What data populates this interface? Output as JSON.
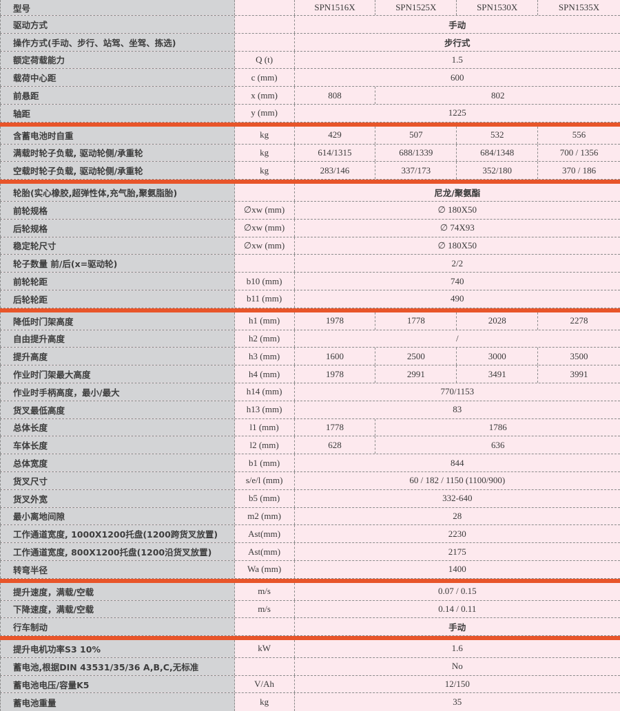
{
  "colors": {
    "label_bg": "#d3d4d6",
    "cell_bg": "#fde9ee",
    "separator": "#e8552a"
  },
  "sections": [
    [
      {
        "label": "型号",
        "unit": "",
        "values": [
          "SPN1516X",
          "SPN1525X",
          "SPN1530X",
          "SPN1535X"
        ]
      },
      {
        "label": "驱动方式",
        "unit": "",
        "values": [
          "手动"
        ]
      },
      {
        "label": "操作方式(手动、步行、站驾、坐驾、拣选)",
        "unit": "",
        "values": [
          "步行式"
        ]
      },
      {
        "label": "额定荷载能力",
        "unit": "Q (t)",
        "values": [
          "1.5"
        ]
      },
      {
        "label": "载荷中心距",
        "unit": "c (mm)",
        "values": [
          "600"
        ]
      },
      {
        "label": "前悬距",
        "unit": "x (mm)",
        "values": [
          "808",
          "802"
        ]
      },
      {
        "label": "轴距",
        "unit": "y (mm)",
        "values": [
          "1225"
        ]
      }
    ],
    [
      {
        "label": "含蓄电池时自重",
        "unit": "kg",
        "values": [
          "429",
          "507",
          "532",
          "556"
        ]
      },
      {
        "label": "满载时轮子负载, 驱动轮侧/承重轮",
        "unit": "kg",
        "values": [
          "614/1315",
          "688/1339",
          "684/1348",
          "700 / 1356"
        ]
      },
      {
        "label": "空载时轮子负载, 驱动轮侧/承重轮",
        "unit": "kg",
        "values": [
          "283/146",
          "337/173",
          "352/180",
          "370 / 186"
        ]
      }
    ],
    [
      {
        "label": "轮胎(实心橡胶,超弹性体,充气胎,聚氨脂胎)",
        "unit": "",
        "values": [
          "尼龙/聚氨酯"
        ]
      },
      {
        "label": "前轮规格",
        "unit": "∅xw (mm)",
        "values": [
          "∅ 180X50"
        ]
      },
      {
        "label": "后轮规格",
        "unit": "∅xw (mm)",
        "values": [
          "∅ 74X93"
        ]
      },
      {
        "label": "稳定轮尺寸",
        "unit": "∅xw (mm)",
        "values": [
          "∅ 180X50"
        ]
      },
      {
        "label": "轮子数量 前/后(x=驱动轮)",
        "unit": "",
        "values": [
          "2/2"
        ]
      },
      {
        "label": "前轮轮距",
        "unit": "b10 (mm)",
        "values": [
          "740"
        ]
      },
      {
        "label": "后轮轮距",
        "unit": "b11 (mm)",
        "values": [
          "490"
        ]
      }
    ],
    [
      {
        "label": "降低时门架高度",
        "unit": "h1 (mm)",
        "values": [
          "1978",
          "1778",
          "2028",
          "2278"
        ]
      },
      {
        "label": "自由提升高度",
        "unit": "h2 (mm)",
        "values": [
          "/"
        ]
      },
      {
        "label": "提升高度",
        "unit": "h3 (mm)",
        "values": [
          "1600",
          "2500",
          "3000",
          "3500"
        ]
      },
      {
        "label": "作业时门架最大高度",
        "unit": "h4 (mm)",
        "values": [
          "1978",
          "2991",
          "3491",
          "3991"
        ]
      },
      {
        "label": "作业时手柄高度，最小/最大",
        "unit": "h14 (mm)",
        "values": [
          "770/1153"
        ]
      },
      {
        "label": "货叉最低高度",
        "unit": "h13 (mm)",
        "values": [
          "83"
        ]
      },
      {
        "label": "总体长度",
        "unit": "l1 (mm)",
        "values": [
          "1778",
          "1786"
        ]
      },
      {
        "label": "车体长度",
        "unit": "l2 (mm)",
        "values": [
          "628",
          "636"
        ]
      },
      {
        "label": "总体宽度",
        "unit": "b1 (mm)",
        "values": [
          "844"
        ]
      },
      {
        "label": "货叉尺寸",
        "unit": "s/e/l (mm)",
        "values": [
          "60 / 182 / 1150 (1100/900)"
        ]
      },
      {
        "label": "货叉外宽",
        "unit": "b5 (mm)",
        "values": [
          "332-640"
        ]
      },
      {
        "label": "最小离地间隙",
        "unit": "m2 (mm)",
        "values": [
          "28"
        ]
      },
      {
        "label": "工作通道宽度, 1000X1200托盘(1200跨货叉放置)",
        "unit": "Ast(mm)",
        "values": [
          "2230"
        ]
      },
      {
        "label": "工作通道宽度, 800X1200托盘(1200沿货叉放置)",
        "unit": "Ast(mm)",
        "values": [
          "2175"
        ]
      },
      {
        "label": "转弯半径",
        "unit": "Wa (mm)",
        "values": [
          "1400"
        ]
      }
    ],
    [
      {
        "label": "提升速度，满载/空载",
        "unit": "m/s",
        "values": [
          "0.07 / 0.15"
        ]
      },
      {
        "label": "下降速度，满载/空载",
        "unit": "m/s",
        "values": [
          "0.14 / 0.11"
        ]
      },
      {
        "label": "行车制动",
        "unit": "",
        "values": [
          "手动"
        ]
      }
    ],
    [
      {
        "label": "提升电机功率S3 10%",
        "unit": "kW",
        "values": [
          "1.6"
        ]
      },
      {
        "label": "蓄电池,根据DIN 43531/35/36 A,B,C,无标准",
        "unit": "",
        "values": [
          "No"
        ]
      },
      {
        "label": "蓄电池电压/容量K5",
        "unit": "V/Ah",
        "values": [
          "12/150"
        ]
      },
      {
        "label": "蓄电池重量",
        "unit": "kg",
        "values": [
          "35"
        ]
      }
    ]
  ]
}
